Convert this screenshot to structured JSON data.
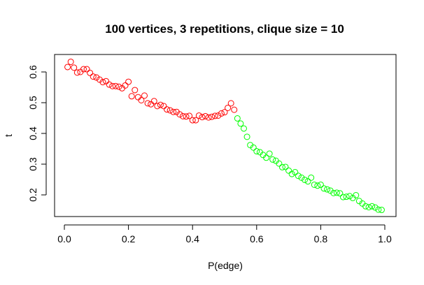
{
  "chart_data": {
    "type": "scatter",
    "title": "100 vertices, 3 repetitions, clique size = 10",
    "xlabel": "P(edge)",
    "ylabel": "t",
    "xlim": [
      0,
      1
    ],
    "ylim": [
      0.15,
      0.65
    ],
    "x_ticks": [
      "0.0",
      "0.2",
      "0.4",
      "0.6",
      "0.8",
      "1.0"
    ],
    "y_ticks": [
      "0.2",
      "0.3",
      "0.4",
      "0.5",
      "0.6"
    ],
    "grid": false,
    "legend": "none",
    "marker": "open-circle",
    "series": [
      {
        "color": "#ff0000",
        "points": [
          [
            0.01,
            0.616
          ],
          [
            0.02,
            0.633
          ],
          [
            0.03,
            0.614
          ],
          [
            0.04,
            0.598
          ],
          [
            0.05,
            0.6
          ],
          [
            0.06,
            0.609
          ],
          [
            0.07,
            0.609
          ],
          [
            0.08,
            0.597
          ],
          [
            0.09,
            0.585
          ],
          [
            0.1,
            0.582
          ],
          [
            0.11,
            0.575
          ],
          [
            0.12,
            0.567
          ],
          [
            0.13,
            0.57
          ],
          [
            0.14,
            0.559
          ],
          [
            0.15,
            0.554
          ],
          [
            0.16,
            0.554
          ],
          [
            0.17,
            0.552
          ],
          [
            0.18,
            0.547
          ],
          [
            0.19,
            0.556
          ],
          [
            0.2,
            0.568
          ],
          [
            0.21,
            0.521
          ],
          [
            0.22,
            0.541
          ],
          [
            0.23,
            0.518
          ],
          [
            0.24,
            0.508
          ],
          [
            0.25,
            0.523
          ],
          [
            0.26,
            0.498
          ],
          [
            0.27,
            0.495
          ],
          [
            0.28,
            0.505
          ],
          [
            0.29,
            0.489
          ],
          [
            0.3,
            0.493
          ],
          [
            0.31,
            0.489
          ],
          [
            0.32,
            0.478
          ],
          [
            0.33,
            0.475
          ],
          [
            0.34,
            0.47
          ],
          [
            0.35,
            0.47
          ],
          [
            0.36,
            0.462
          ],
          [
            0.37,
            0.456
          ],
          [
            0.38,
            0.455
          ],
          [
            0.39,
            0.457
          ],
          [
            0.4,
            0.443
          ],
          [
            0.41,
            0.443
          ],
          [
            0.42,
            0.458
          ],
          [
            0.43,
            0.453
          ],
          [
            0.44,
            0.456
          ],
          [
            0.45,
            0.452
          ],
          [
            0.46,
            0.454
          ],
          [
            0.47,
            0.457
          ],
          [
            0.48,
            0.458
          ],
          [
            0.49,
            0.465
          ],
          [
            0.5,
            0.469
          ],
          [
            0.51,
            0.483
          ],
          [
            0.52,
            0.498
          ],
          [
            0.53,
            0.477
          ]
        ]
      },
      {
        "color": "#00ff00",
        "points": [
          [
            0.54,
            0.449
          ],
          [
            0.55,
            0.432
          ],
          [
            0.56,
            0.416
          ],
          [
            0.57,
            0.389
          ],
          [
            0.58,
            0.362
          ],
          [
            0.59,
            0.354
          ],
          [
            0.6,
            0.342
          ],
          [
            0.61,
            0.339
          ],
          [
            0.62,
            0.33
          ],
          [
            0.63,
            0.321
          ],
          [
            0.64,
            0.334
          ],
          [
            0.65,
            0.315
          ],
          [
            0.66,
            0.311
          ],
          [
            0.67,
            0.302
          ],
          [
            0.68,
            0.29
          ],
          [
            0.69,
            0.291
          ],
          [
            0.7,
            0.279
          ],
          [
            0.71,
            0.268
          ],
          [
            0.72,
            0.274
          ],
          [
            0.73,
            0.262
          ],
          [
            0.74,
            0.256
          ],
          [
            0.75,
            0.249
          ],
          [
            0.76,
            0.244
          ],
          [
            0.77,
            0.256
          ],
          [
            0.78,
            0.233
          ],
          [
            0.79,
            0.23
          ],
          [
            0.8,
            0.233
          ],
          [
            0.81,
            0.221
          ],
          [
            0.82,
            0.218
          ],
          [
            0.83,
            0.214
          ],
          [
            0.84,
            0.206
          ],
          [
            0.85,
            0.207
          ],
          [
            0.86,
            0.205
          ],
          [
            0.87,
            0.193
          ],
          [
            0.88,
            0.194
          ],
          [
            0.89,
            0.196
          ],
          [
            0.9,
            0.19
          ],
          [
            0.91,
            0.199
          ],
          [
            0.92,
            0.18
          ],
          [
            0.93,
            0.172
          ],
          [
            0.94,
            0.163
          ],
          [
            0.95,
            0.16
          ],
          [
            0.96,
            0.163
          ],
          [
            0.97,
            0.159
          ],
          [
            0.98,
            0.152
          ],
          [
            0.99,
            0.151
          ]
        ]
      }
    ]
  }
}
